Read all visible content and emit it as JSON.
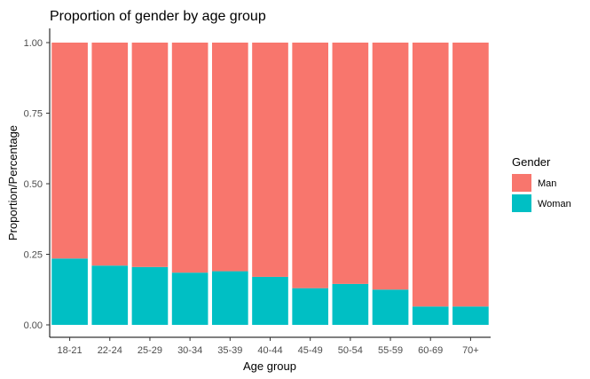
{
  "chart_data": {
    "type": "bar",
    "stacked": true,
    "title": "Proportion of gender by age group",
    "xlabel": "Age group",
    "ylabel": "Proportion/Percentage",
    "categories": [
      "18-21",
      "22-24",
      "25-29",
      "30-34",
      "35-39",
      "40-44",
      "45-49",
      "50-54",
      "55-59",
      "60-69",
      "70+"
    ],
    "series": [
      {
        "name": "Woman",
        "color": "#00BFC4",
        "values": [
          0.235,
          0.21,
          0.205,
          0.185,
          0.19,
          0.17,
          0.13,
          0.145,
          0.125,
          0.065,
          0.065
        ]
      },
      {
        "name": "Man",
        "color": "#F8766D",
        "values": [
          0.765,
          0.79,
          0.795,
          0.815,
          0.81,
          0.83,
          0.87,
          0.855,
          0.875,
          0.935,
          0.935
        ]
      }
    ],
    "ylim": [
      0,
      1
    ],
    "yticks": [
      "0.00",
      "0.25",
      "0.50",
      "0.75",
      "1.00"
    ],
    "grid": false,
    "legend": {
      "title": "Gender",
      "placement": "right",
      "entries": [
        {
          "label": "Man",
          "color": "#F8766D"
        },
        {
          "label": "Woman",
          "color": "#00BFC4"
        }
      ]
    }
  }
}
